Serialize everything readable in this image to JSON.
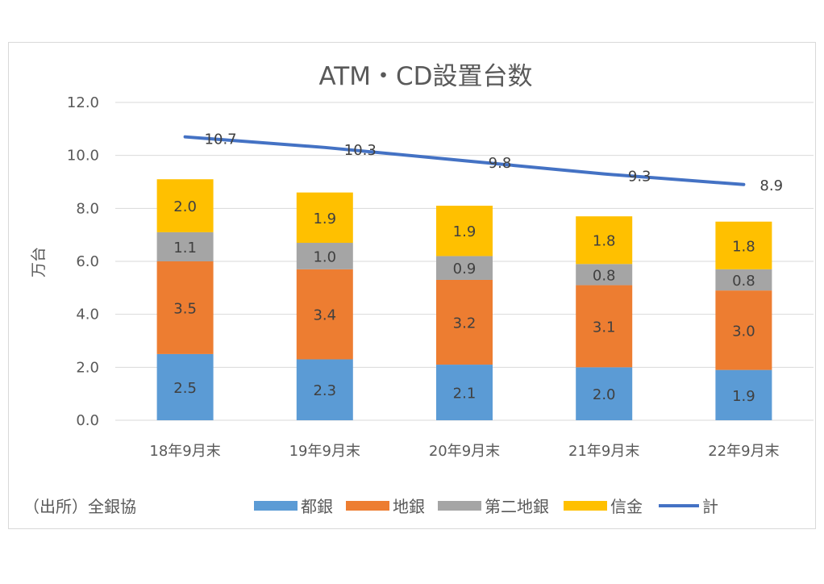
{
  "chart_data": {
    "type": "bar",
    "stacked": true,
    "title": "ATM・CD設置台数",
    "ylabel": "万台",
    "xlabel": "",
    "ylim": [
      0,
      12
    ],
    "yticks": [
      "0.0",
      "2.0",
      "4.0",
      "6.0",
      "8.0",
      "10.0",
      "12.0"
    ],
    "grid": true,
    "legend_position": "bottom",
    "categories": [
      "18年9月末",
      "19年9月末",
      "20年9月末",
      "21年9月末",
      "22年9月末"
    ],
    "series": [
      {
        "name": "都銀",
        "color": "#5b9bd5",
        "values": [
          2.5,
          2.3,
          2.1,
          2.0,
          1.9
        ],
        "labels": [
          "2.5",
          "2.3",
          "2.1",
          "2.0",
          "1.9"
        ]
      },
      {
        "name": "地銀",
        "color": "#ed7d31",
        "values": [
          3.5,
          3.4,
          3.2,
          3.1,
          3.0
        ],
        "labels": [
          "3.5",
          "3.4",
          "3.2",
          "3.1",
          "3.0"
        ]
      },
      {
        "name": "第二地銀",
        "color": "#a5a5a5",
        "values": [
          1.1,
          1.0,
          0.9,
          0.8,
          0.8
        ],
        "labels": [
          "1.1",
          "1.0",
          "0.9",
          "0.8",
          "0.8"
        ]
      },
      {
        "name": "信金",
        "color": "#ffc000",
        "values": [
          2.0,
          1.9,
          1.9,
          1.8,
          1.8
        ],
        "labels": [
          "2.0",
          "1.9",
          "1.9",
          "1.8",
          "1.8"
        ]
      }
    ],
    "line": {
      "name": "計",
      "color": "#4472c4",
      "values": [
        10.7,
        10.3,
        9.8,
        9.3,
        8.9
      ],
      "labels": [
        "10.7",
        "10.3",
        "9.8",
        "9.3",
        "8.9"
      ]
    },
    "source": "（出所）全銀協"
  }
}
